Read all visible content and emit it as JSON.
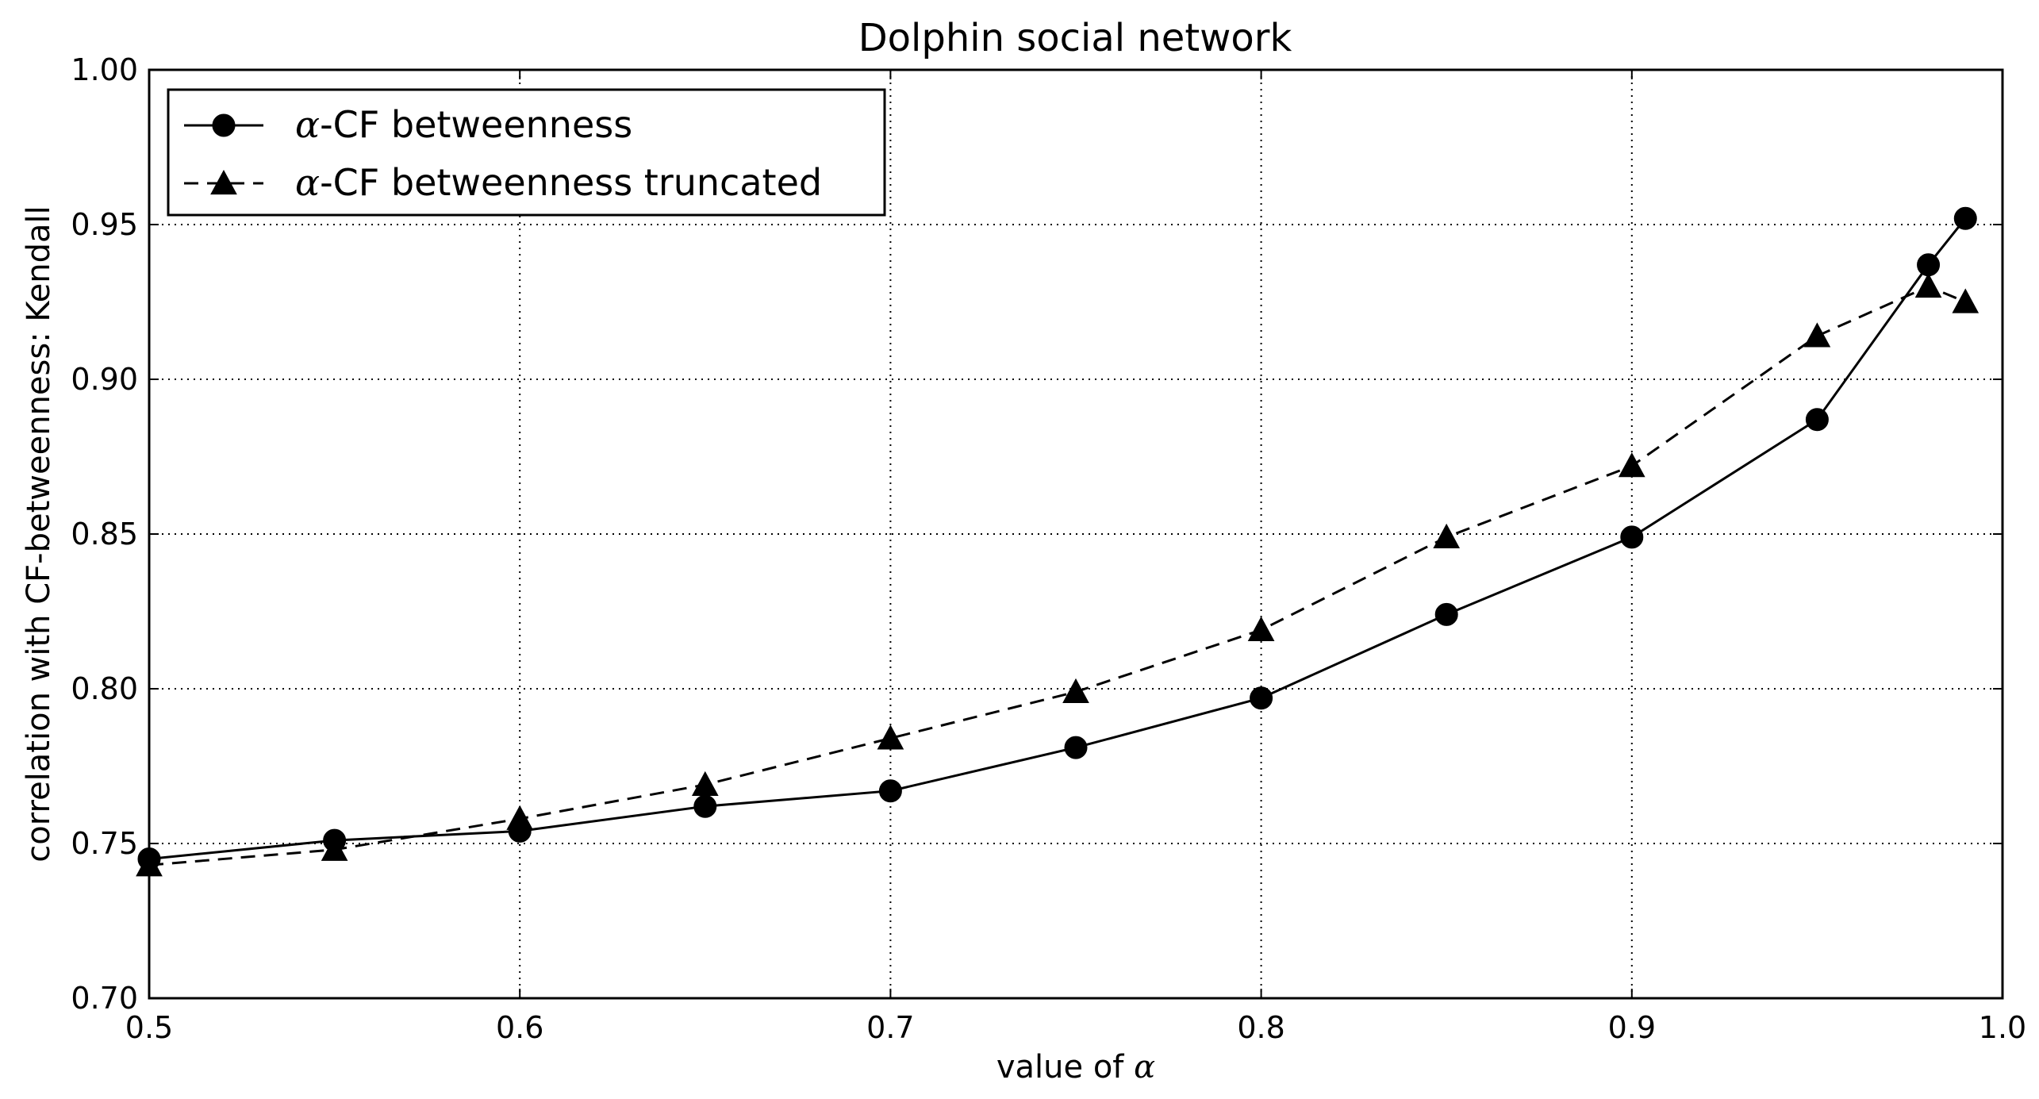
{
  "chart_data": {
    "type": "line",
    "title": "Dolphin social network",
    "xlabel": "value of ",
    "xlabel_symbol": "α",
    "ylabel": "correlation with CF-betweenness: Kendall",
    "xlim": [
      0.5,
      1.0
    ],
    "ylim": [
      0.7,
      1.0
    ],
    "x_ticks": [
      0.5,
      0.6,
      0.7,
      0.8,
      0.9,
      1.0
    ],
    "x_tick_labels": [
      "0.5",
      "0.6",
      "0.7",
      "0.8",
      "0.9",
      "1.0"
    ],
    "y_ticks": [
      0.7,
      0.75,
      0.8,
      0.85,
      0.9,
      0.95,
      1.0
    ],
    "y_tick_labels": [
      "0.70",
      "0.75",
      "0.80",
      "0.85",
      "0.90",
      "0.95",
      "1.00"
    ],
    "grid": true,
    "legend_position": "top-left",
    "series": [
      {
        "name": "α-CF betweenness",
        "legend_symbol": "α",
        "legend_text": "-CF betweenness",
        "marker": "circle",
        "line_style": "solid",
        "x": [
          0.5,
          0.55,
          0.6,
          0.65,
          0.7,
          0.75,
          0.8,
          0.85,
          0.9,
          0.95,
          0.98,
          0.99
        ],
        "values": [
          0.745,
          0.751,
          0.754,
          0.762,
          0.767,
          0.781,
          0.797,
          0.824,
          0.849,
          0.887,
          0.937,
          0.952
        ]
      },
      {
        "name": "α-CF betweenness truncated",
        "legend_symbol": "α",
        "legend_text": "-CF betweenness truncated",
        "marker": "triangle",
        "line_style": "dashed",
        "x": [
          0.5,
          0.55,
          0.6,
          0.65,
          0.7,
          0.75,
          0.8,
          0.85,
          0.9,
          0.95,
          0.98,
          0.99
        ],
        "values": [
          0.743,
          0.748,
          0.758,
          0.769,
          0.784,
          0.799,
          0.819,
          0.849,
          0.872,
          0.914,
          0.93,
          0.925
        ]
      }
    ]
  }
}
